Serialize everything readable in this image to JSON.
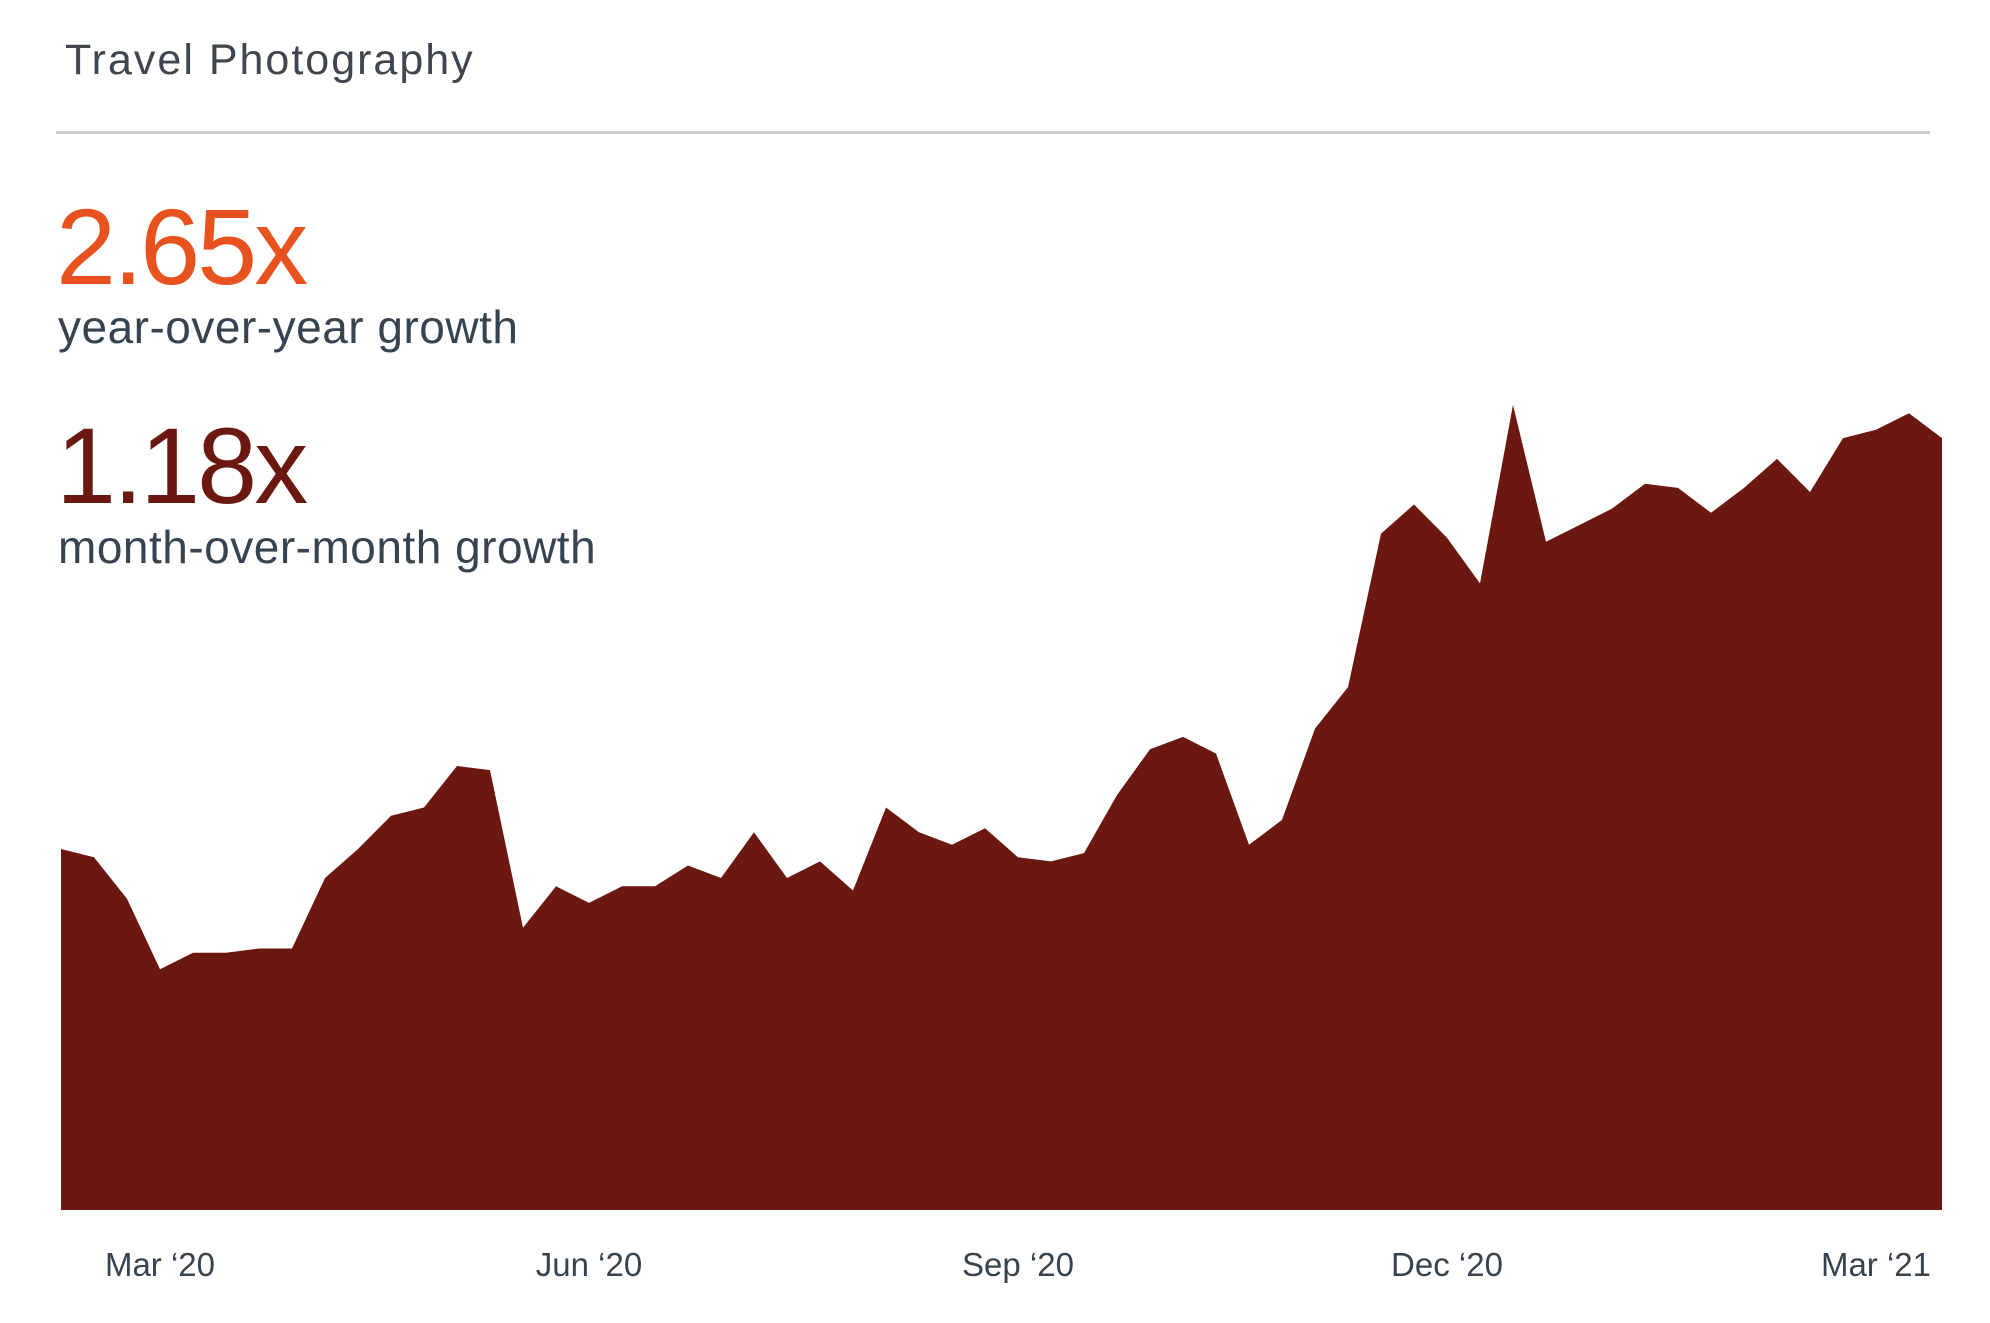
{
  "card": {
    "title": "Travel Photography"
  },
  "stats": {
    "yoy": {
      "value": "2.65x",
      "label": "year-over-year growth",
      "color": "#e8521f"
    },
    "mom": {
      "value": "1.18x",
      "label": "month-over-month growth",
      "color": "#6b1810"
    }
  },
  "colors": {
    "area": "#6b1810",
    "divider": "#c9ccd0",
    "text": "#364451"
  },
  "chart_data": {
    "type": "area",
    "title": "",
    "xlabel": "",
    "ylabel": "",
    "grid": false,
    "x_tick_labels": [
      "Mar ‘20",
      "Jun ‘20",
      "Sep ‘20",
      "Dec ‘20",
      "Mar ‘21"
    ],
    "x_tick_positions": [
      3,
      16,
      29,
      42,
      55
    ],
    "x_range": [
      0,
      57
    ],
    "ylim": [
      0,
      100
    ],
    "series": [
      {
        "values": [
          43.5,
          42.5,
          37.5,
          29,
          31,
          31,
          31.5,
          31.5,
          40,
          43.5,
          47.5,
          48.5,
          53.5,
          53,
          34,
          39,
          37,
          39,
          39,
          41.5,
          40,
          45.5,
          40,
          42,
          38.5,
          48.5,
          45.5,
          44,
          46,
          42.5,
          42,
          43,
          50,
          55.5,
          57,
          55,
          44,
          47,
          58,
          63,
          81.5,
          85,
          81,
          75.5,
          97,
          80.5,
          82.5,
          84.5,
          87.5,
          87,
          84,
          87,
          90.5,
          86.5,
          93,
          94,
          96,
          93
        ]
      }
    ]
  }
}
